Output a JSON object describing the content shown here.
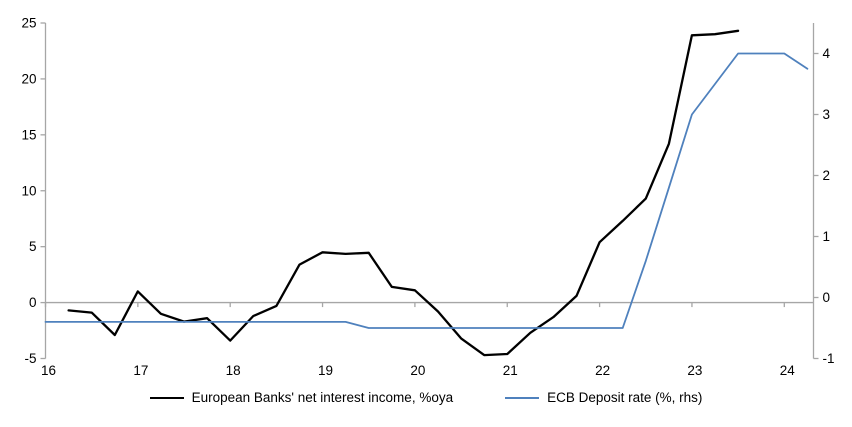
{
  "chart_data": {
    "type": "line",
    "title": "",
    "x_axis": {
      "ticks": [
        16,
        17,
        18,
        19,
        20,
        21,
        22,
        23,
        24
      ],
      "range": [
        16,
        24.33
      ]
    },
    "left_axis": {
      "ticks": [
        25,
        20,
        15,
        10,
        5,
        0,
        -5
      ],
      "range": [
        -5,
        25
      ]
    },
    "right_axis": {
      "ticks": [
        4,
        3,
        2,
        1,
        0,
        -1
      ],
      "range": [
        -1,
        4.5
      ]
    },
    "grid": "zero-line-only",
    "legend_position": "bottom",
    "series": [
      {
        "name": "European Banks' net interest income, %oya",
        "axis": "left",
        "color": "#000000",
        "x": [
          16.25,
          16.5,
          16.75,
          17.0,
          17.25,
          17.5,
          17.75,
          18.0,
          18.25,
          18.5,
          18.75,
          19.0,
          19.25,
          19.5,
          19.75,
          20.0,
          20.25,
          20.5,
          20.75,
          21.0,
          21.25,
          21.5,
          21.75,
          22.0,
          22.25,
          22.5,
          22.75,
          23.0,
          23.25,
          23.5
        ],
        "values": [
          -0.7,
          -0.9,
          -2.9,
          1.0,
          -1.0,
          -1.7,
          -1.4,
          -3.4,
          -1.2,
          -0.3,
          3.4,
          4.5,
          4.35,
          4.45,
          1.4,
          1.1,
          -0.8,
          -3.2,
          -4.7,
          -4.6,
          -2.7,
          -1.3,
          0.6,
          5.4,
          7.3,
          9.3,
          14.2,
          23.9,
          24.0,
          24.3
        ]
      },
      {
        "name": "ECB Deposit rate (%, rhs)",
        "axis": "right",
        "color": "#4F81BD",
        "x": [
          16.0,
          16.25,
          16.5,
          16.75,
          17.0,
          17.25,
          17.5,
          17.75,
          18.0,
          18.25,
          18.5,
          18.75,
          19.0,
          19.25,
          19.5,
          19.75,
          20.0,
          20.25,
          20.5,
          20.75,
          21.0,
          21.25,
          21.5,
          21.75,
          22.0,
          22.25,
          22.5,
          22.75,
          23.0,
          23.25,
          23.5,
          23.75,
          24.0,
          24.25
        ],
        "values": [
          -0.4,
          -0.4,
          -0.4,
          -0.4,
          -0.4,
          -0.4,
          -0.4,
          -0.4,
          -0.4,
          -0.4,
          -0.4,
          -0.4,
          -0.4,
          -0.4,
          -0.5,
          -0.5,
          -0.5,
          -0.5,
          -0.5,
          -0.5,
          -0.5,
          -0.5,
          -0.5,
          -0.5,
          -0.5,
          -0.5,
          0.6,
          1.8,
          3.0,
          3.5,
          4.0,
          4.0,
          4.0,
          3.75
        ]
      }
    ]
  },
  "colors": {
    "axis_gray": "#A6A6A6",
    "text": "#000000",
    "series_nii": "#000000",
    "series_ecb": "#4F81BD"
  }
}
